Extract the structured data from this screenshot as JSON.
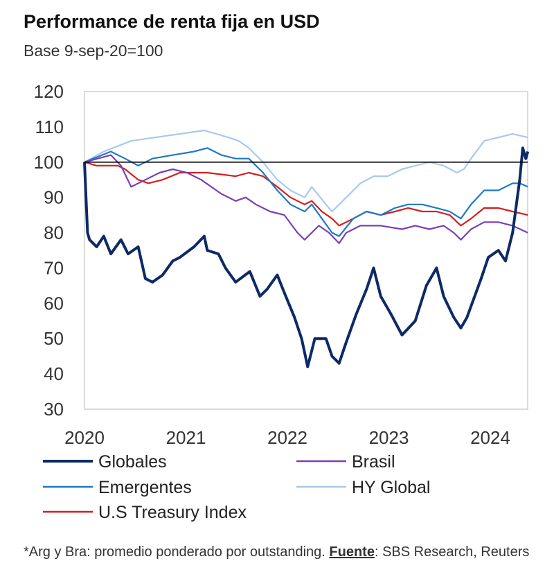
{
  "chart_data": {
    "type": "line",
    "title": "Performance de renta fija en USD",
    "subtitle": "Base 9-sep-20=100",
    "ylim": [
      30,
      120
    ],
    "yticks": [
      30,
      40,
      50,
      60,
      70,
      80,
      90,
      100,
      110,
      120
    ],
    "xlim": [
      2020,
      2024.37
    ],
    "xticks": [
      "2020",
      "2021",
      "2022",
      "2023",
      "2024"
    ],
    "reference_line": 100,
    "grid": false,
    "legend_position": "bottom",
    "series": [
      {
        "name": "Globales",
        "color": "#0d2a66",
        "width": 4,
        "points": [
          [
            2020.0,
            100
          ],
          [
            2020.03,
            80
          ],
          [
            2020.05,
            78
          ],
          [
            2020.12,
            76
          ],
          [
            2020.19,
            79
          ],
          [
            2020.26,
            74
          ],
          [
            2020.36,
            78
          ],
          [
            2020.43,
            74
          ],
          [
            2020.53,
            76
          ],
          [
            2020.6,
            67
          ],
          [
            2020.67,
            66
          ],
          [
            2020.77,
            68
          ],
          [
            2020.87,
            72
          ],
          [
            2020.94,
            73
          ],
          [
            2021.08,
            76
          ],
          [
            2021.18,
            79
          ],
          [
            2021.21,
            75
          ],
          [
            2021.32,
            74
          ],
          [
            2021.39,
            70
          ],
          [
            2021.49,
            66
          ],
          [
            2021.63,
            69
          ],
          [
            2021.73,
            62
          ],
          [
            2021.8,
            64
          ],
          [
            2021.9,
            68
          ],
          [
            2021.97,
            63
          ],
          [
            2022.07,
            56
          ],
          [
            2022.14,
            50
          ],
          [
            2022.2,
            42
          ],
          [
            2022.27,
            50
          ],
          [
            2022.38,
            50
          ],
          [
            2022.44,
            45
          ],
          [
            2022.51,
            43
          ],
          [
            2022.58,
            49
          ],
          [
            2022.68,
            57
          ],
          [
            2022.78,
            64
          ],
          [
            2022.85,
            70
          ],
          [
            2022.92,
            62
          ],
          [
            2023.02,
            57
          ],
          [
            2023.13,
            51
          ],
          [
            2023.26,
            55
          ],
          [
            2023.37,
            65
          ],
          [
            2023.47,
            70
          ],
          [
            2023.54,
            62
          ],
          [
            2023.64,
            56
          ],
          [
            2023.71,
            53
          ],
          [
            2023.77,
            56
          ],
          [
            2023.91,
            67
          ],
          [
            2023.98,
            73
          ],
          [
            2024.08,
            75
          ],
          [
            2024.15,
            72
          ],
          [
            2024.22,
            80
          ],
          [
            2024.29,
            95
          ],
          [
            2024.32,
            104
          ],
          [
            2024.35,
            101
          ],
          [
            2024.37,
            103
          ]
        ]
      },
      {
        "name": "Brasil",
        "color": "#7a3fb5",
        "width": 2.2,
        "points": [
          [
            2020.0,
            100
          ],
          [
            2020.26,
            102
          ],
          [
            2020.36,
            99
          ],
          [
            2020.46,
            93
          ],
          [
            2020.6,
            95
          ],
          [
            2020.74,
            97
          ],
          [
            2020.87,
            98
          ],
          [
            2021.01,
            97
          ],
          [
            2021.15,
            95
          ],
          [
            2021.35,
            91
          ],
          [
            2021.49,
            89
          ],
          [
            2021.59,
            90
          ],
          [
            2021.69,
            88
          ],
          [
            2021.83,
            86
          ],
          [
            2021.97,
            85
          ],
          [
            2022.1,
            80
          ],
          [
            2022.17,
            78
          ],
          [
            2022.31,
            82
          ],
          [
            2022.41,
            80
          ],
          [
            2022.51,
            77
          ],
          [
            2022.58,
            80
          ],
          [
            2022.72,
            82
          ],
          [
            2022.92,
            82
          ],
          [
            2023.13,
            81
          ],
          [
            2023.26,
            82
          ],
          [
            2023.4,
            81
          ],
          [
            2023.54,
            82
          ],
          [
            2023.64,
            80
          ],
          [
            2023.71,
            78
          ],
          [
            2023.81,
            81
          ],
          [
            2023.94,
            83
          ],
          [
            2024.08,
            83
          ],
          [
            2024.22,
            82
          ],
          [
            2024.37,
            80
          ]
        ]
      },
      {
        "name": "Emergentes",
        "color": "#1f78c8",
        "width": 2.2,
        "points": [
          [
            2020.0,
            100
          ],
          [
            2020.26,
            103
          ],
          [
            2020.4,
            101
          ],
          [
            2020.53,
            99
          ],
          [
            2020.67,
            101
          ],
          [
            2020.87,
            102
          ],
          [
            2021.08,
            103
          ],
          [
            2021.21,
            104
          ],
          [
            2021.35,
            102
          ],
          [
            2021.49,
            101
          ],
          [
            2021.62,
            101
          ],
          [
            2021.76,
            97
          ],
          [
            2021.9,
            92
          ],
          [
            2022.03,
            88
          ],
          [
            2022.17,
            86
          ],
          [
            2022.24,
            88
          ],
          [
            2022.34,
            84
          ],
          [
            2022.44,
            80
          ],
          [
            2022.51,
            79
          ],
          [
            2022.65,
            84
          ],
          [
            2022.78,
            86
          ],
          [
            2022.92,
            85
          ],
          [
            2023.06,
            87
          ],
          [
            2023.19,
            88
          ],
          [
            2023.33,
            88
          ],
          [
            2023.47,
            87
          ],
          [
            2023.6,
            86
          ],
          [
            2023.71,
            84
          ],
          [
            2023.81,
            88
          ],
          [
            2023.94,
            92
          ],
          [
            2024.08,
            92
          ],
          [
            2024.22,
            94
          ],
          [
            2024.29,
            94
          ],
          [
            2024.37,
            93
          ]
        ]
      },
      {
        "name": "HY Global",
        "color": "#a9c9ee",
        "width": 2.2,
        "points": [
          [
            2020.0,
            100
          ],
          [
            2020.19,
            103
          ],
          [
            2020.46,
            106
          ],
          [
            2020.94,
            108
          ],
          [
            2021.18,
            109
          ],
          [
            2021.42,
            107
          ],
          [
            2021.52,
            106
          ],
          [
            2021.62,
            104
          ],
          [
            2021.76,
            100
          ],
          [
            2021.9,
            95
          ],
          [
            2022.03,
            92
          ],
          [
            2022.17,
            90
          ],
          [
            2022.24,
            93
          ],
          [
            2022.38,
            88
          ],
          [
            2022.44,
            86
          ],
          [
            2022.58,
            90
          ],
          [
            2022.72,
            94
          ],
          [
            2022.85,
            96
          ],
          [
            2022.99,
            96
          ],
          [
            2023.13,
            98
          ],
          [
            2023.26,
            99
          ],
          [
            2023.4,
            100
          ],
          [
            2023.54,
            99
          ],
          [
            2023.67,
            97
          ],
          [
            2023.74,
            98
          ],
          [
            2023.81,
            101
          ],
          [
            2023.94,
            106
          ],
          [
            2024.08,
            107
          ],
          [
            2024.22,
            108
          ],
          [
            2024.37,
            107
          ]
        ]
      },
      {
        "name": "U.S Treasury Index",
        "color": "#d41f1f",
        "width": 2.2,
        "points": [
          [
            2020.0,
            100
          ],
          [
            2020.12,
            99
          ],
          [
            2020.33,
            99
          ],
          [
            2020.4,
            98
          ],
          [
            2020.53,
            95
          ],
          [
            2020.63,
            94
          ],
          [
            2020.77,
            95
          ],
          [
            2020.94,
            97
          ],
          [
            2021.21,
            97
          ],
          [
            2021.49,
            96
          ],
          [
            2021.62,
            97
          ],
          [
            2021.76,
            96
          ],
          [
            2021.9,
            93
          ],
          [
            2022.03,
            90
          ],
          [
            2022.17,
            88
          ],
          [
            2022.24,
            89
          ],
          [
            2022.34,
            86
          ],
          [
            2022.44,
            84
          ],
          [
            2022.51,
            82
          ],
          [
            2022.65,
            84
          ],
          [
            2022.78,
            86
          ],
          [
            2022.92,
            85
          ],
          [
            2023.06,
            86
          ],
          [
            2023.19,
            87
          ],
          [
            2023.33,
            86
          ],
          [
            2023.47,
            86
          ],
          [
            2023.6,
            85
          ],
          [
            2023.71,
            82
          ],
          [
            2023.81,
            84
          ],
          [
            2023.94,
            87
          ],
          [
            2024.08,
            87
          ],
          [
            2024.22,
            86
          ],
          [
            2024.37,
            85
          ]
        ]
      }
    ]
  },
  "footnote": {
    "prefix": "*Arg y Bra: promedio ponderado por outstanding. ",
    "source_label": "Fuente",
    "source_text": ": SBS Research, Reuters"
  }
}
